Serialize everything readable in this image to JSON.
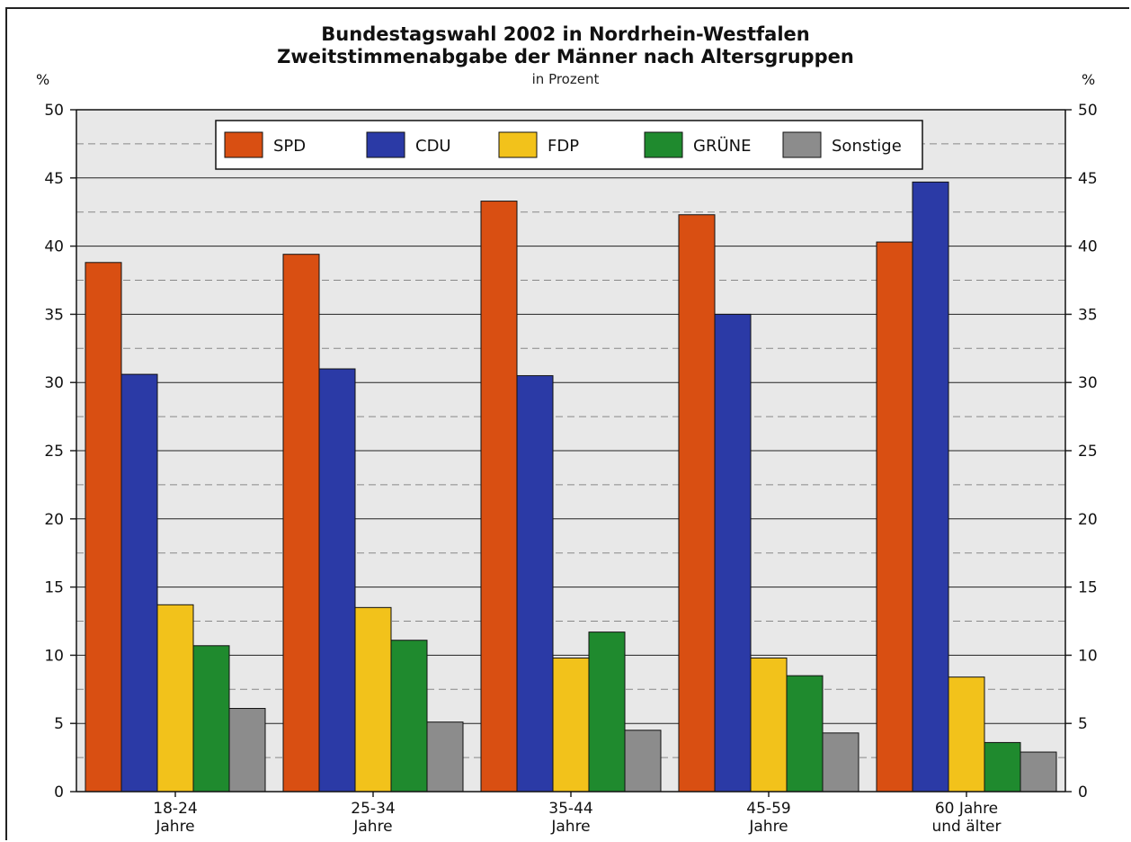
{
  "chart_data": {
    "type": "bar",
    "title": "Bundestagswahl 2002 in Nordrhein-Westfalen",
    "subtitle": "Zweitstimmenabgabe der Männer nach Altersgruppen",
    "unit_note": "in Prozent",
    "ylabel_left": "%",
    "ylabel_right": "%",
    "ylim": [
      0,
      50
    ],
    "yticks": [
      0,
      5,
      10,
      15,
      20,
      25,
      30,
      35,
      40,
      45,
      50
    ],
    "grid": true,
    "legend_position": "top-center",
    "categories": [
      [
        "18-24",
        "Jahre"
      ],
      [
        "25-34",
        "Jahre"
      ],
      [
        "35-44",
        "Jahre"
      ],
      [
        "45-59",
        "Jahre"
      ],
      [
        "60 Jahre",
        "und älter"
      ]
    ],
    "series": [
      {
        "name": "SPD",
        "color": "#d94f12",
        "values": [
          38.8,
          39.4,
          43.3,
          42.3,
          40.3
        ]
      },
      {
        "name": "CDU",
        "color": "#2b3aa6",
        "values": [
          30.6,
          31.0,
          30.5,
          35.0,
          44.7
        ]
      },
      {
        "name": "FDP",
        "color": "#f2c21b",
        "values": [
          13.7,
          13.5,
          9.8,
          9.8,
          8.4
        ]
      },
      {
        "name": "GRÜNE",
        "color": "#1f8a2e",
        "values": [
          10.7,
          11.1,
          11.7,
          8.5,
          3.6
        ]
      },
      {
        "name": "Sonstige",
        "color": "#8c8c8c",
        "values": [
          6.1,
          5.1,
          4.5,
          4.3,
          2.9
        ]
      }
    ]
  }
}
